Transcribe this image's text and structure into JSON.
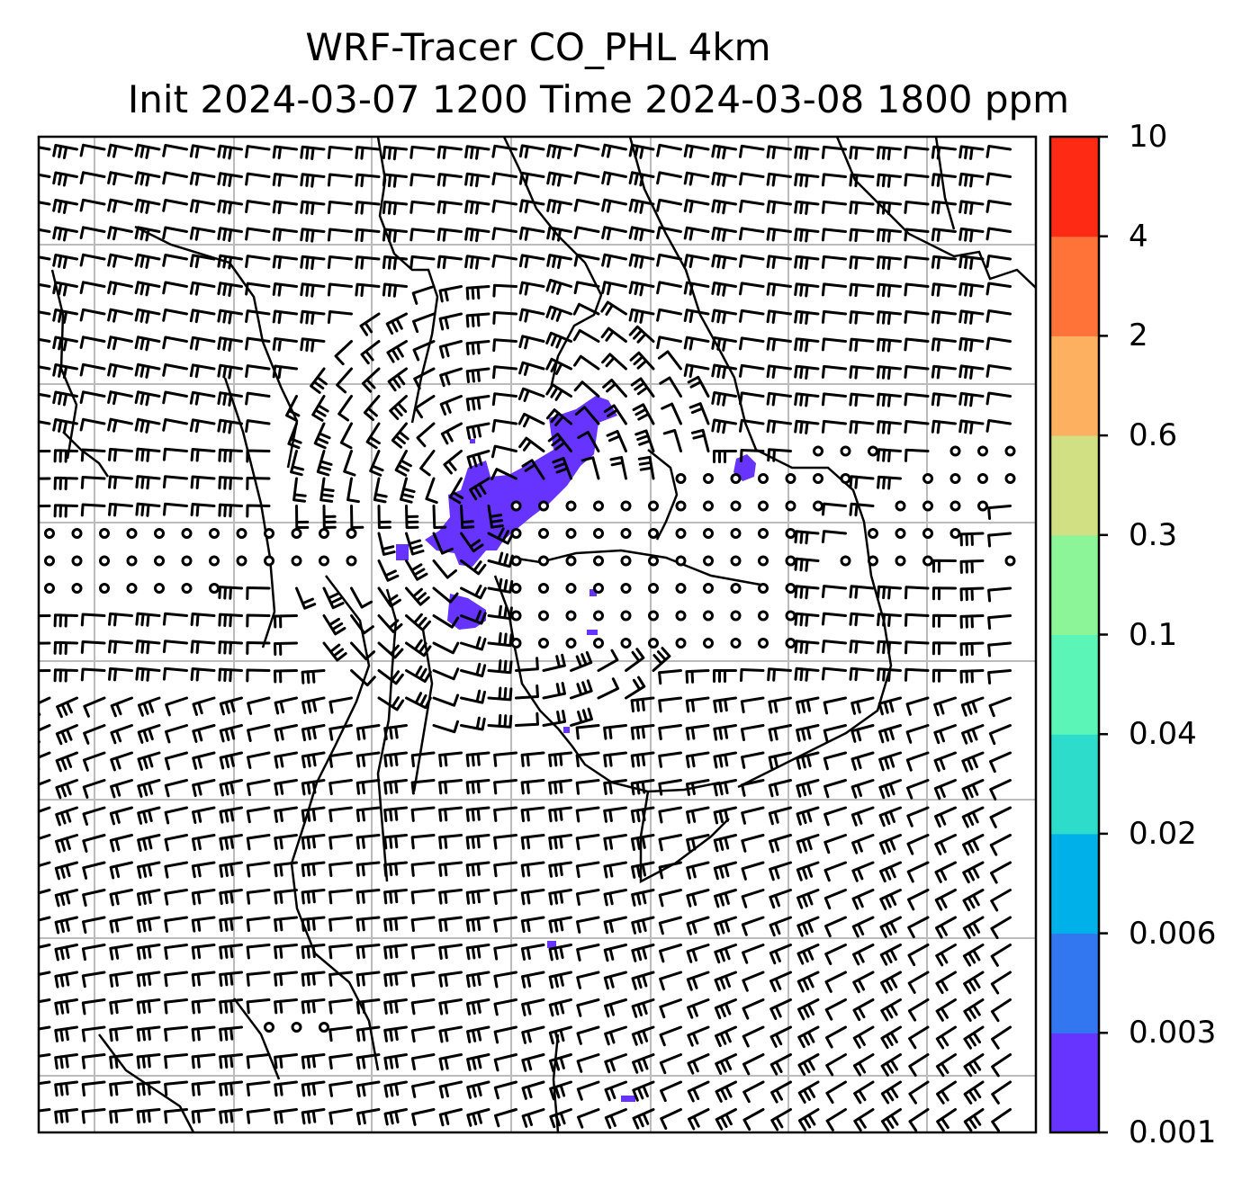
{
  "title": {
    "line1": "WRF-Tracer CO_PHL 4km",
    "line2": "Init 2024-03-07 1200 Time 2024-03-08 1800 ppm"
  },
  "colorbar": {
    "levels": [
      "0.001",
      "0.003",
      "0.006",
      "0.02",
      "0.04",
      "0.1",
      "0.3",
      "0.6",
      "2",
      "4",
      "10"
    ],
    "colors": [
      "#6633ff",
      "#3377f0",
      "#00b0e8",
      "#2edccc",
      "#5cf5b8",
      "#8cf598",
      "#d2e084",
      "#fdb060",
      "#ff7338",
      "#ff2a14"
    ]
  },
  "plume_color": "#6633ff",
  "calm_wind_symbol": "circle",
  "gridline_color": "#bbbbbb"
}
